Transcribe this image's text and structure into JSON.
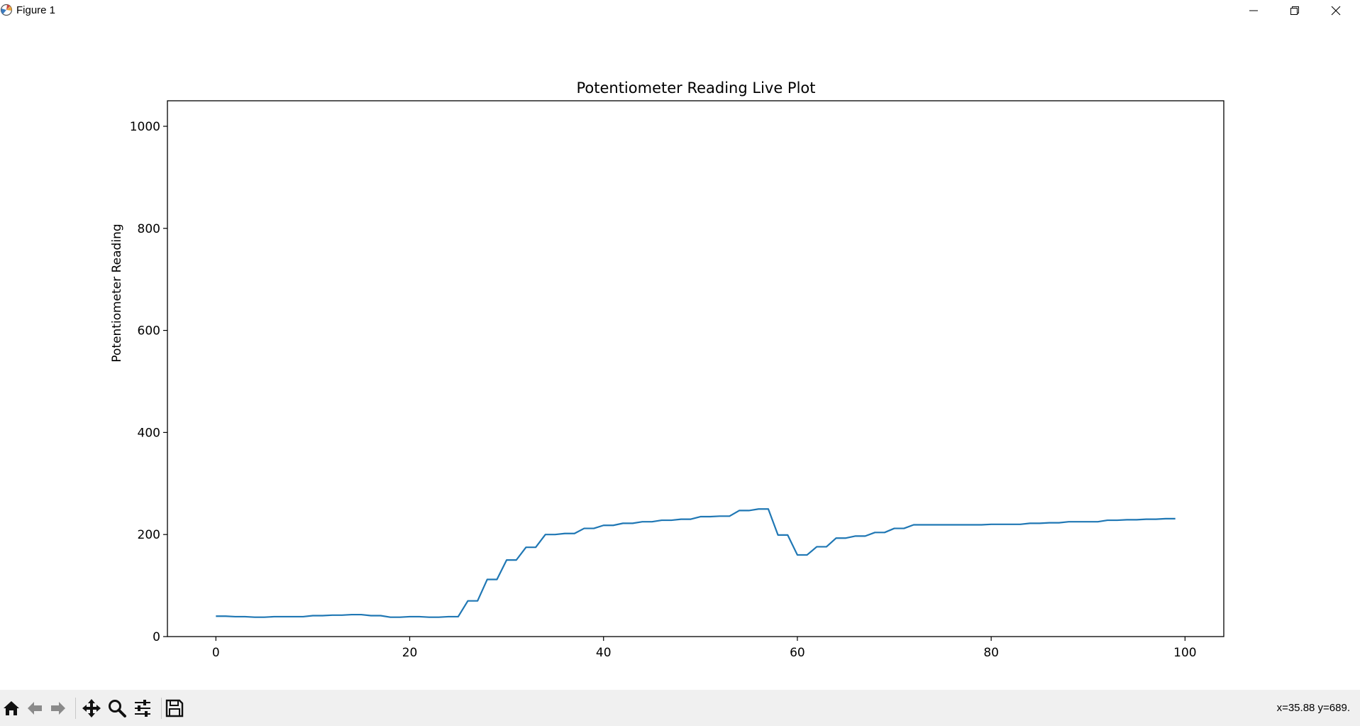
{
  "window": {
    "title": "Figure 1",
    "icons": {
      "app": "matplotlib-icon",
      "minimize": "minimize-icon",
      "maximize": "restore-icon",
      "close": "close-icon"
    }
  },
  "toolbar": {
    "buttons": [
      {
        "name": "home",
        "icon": "home-icon"
      },
      {
        "name": "back",
        "icon": "arrow-left-icon"
      },
      {
        "name": "forward",
        "icon": "arrow-right-icon"
      },
      {
        "name": "pan",
        "icon": "move-icon"
      },
      {
        "name": "zoom",
        "icon": "zoom-icon"
      },
      {
        "name": "configure",
        "icon": "sliders-icon"
      },
      {
        "name": "save",
        "icon": "save-icon"
      }
    ],
    "coordinates": "x=35.88 y=689."
  },
  "colors": {
    "line": "#1f77b4",
    "toolbar_bg": "#f0f0f0"
  },
  "chart_data": {
    "type": "line",
    "title": "Potentiometer Reading Live Plot",
    "xlabel": "",
    "ylabel": "Potentiometer Reading",
    "xlim": [
      -5,
      104
    ],
    "ylim": [
      0,
      1050
    ],
    "xticks": [
      0,
      20,
      40,
      60,
      80,
      100
    ],
    "yticks": [
      0,
      200,
      400,
      600,
      800,
      1000
    ],
    "grid": false,
    "series": [
      {
        "name": "",
        "x": [
          0,
          1,
          2,
          3,
          4,
          5,
          6,
          7,
          8,
          9,
          10,
          11,
          12,
          13,
          14,
          15,
          16,
          17,
          18,
          19,
          20,
          21,
          22,
          23,
          24,
          25,
          26,
          27,
          28,
          29,
          30,
          31,
          32,
          33,
          34,
          35,
          36,
          37,
          38,
          39,
          40,
          41,
          42,
          43,
          44,
          45,
          46,
          47,
          48,
          49,
          50,
          51,
          52,
          53,
          54,
          55,
          56,
          57,
          58,
          59,
          60,
          61,
          62,
          63,
          64,
          65,
          66,
          67,
          68,
          69,
          70,
          71,
          72,
          73,
          74,
          75,
          76,
          77,
          78,
          79,
          80,
          81,
          82,
          83,
          84,
          85,
          86,
          87,
          88,
          89,
          90,
          91,
          92,
          93,
          94,
          95,
          96,
          97,
          98,
          99
        ],
        "values": [
          40,
          40,
          39,
          39,
          38,
          38,
          39,
          39,
          39,
          39,
          41,
          41,
          42,
          42,
          43,
          43,
          41,
          41,
          38,
          38,
          39,
          39,
          38,
          38,
          39,
          39,
          70,
          70,
          112,
          112,
          150,
          150,
          175,
          175,
          200,
          200,
          202,
          202,
          212,
          212,
          218,
          218,
          222,
          222,
          225,
          225,
          228,
          228,
          230,
          230,
          235,
          235,
          236,
          236,
          247,
          247,
          250,
          250,
          199,
          199,
          160,
          160,
          176,
          176,
          193,
          193,
          197,
          197,
          204,
          204,
          212,
          212,
          219,
          219,
          219,
          219,
          219,
          219,
          219,
          219,
          220,
          220,
          220,
          220,
          222,
          222,
          223,
          223,
          225,
          225,
          225,
          225,
          228,
          228,
          229,
          229,
          230,
          230,
          231,
          231
        ]
      }
    ]
  }
}
